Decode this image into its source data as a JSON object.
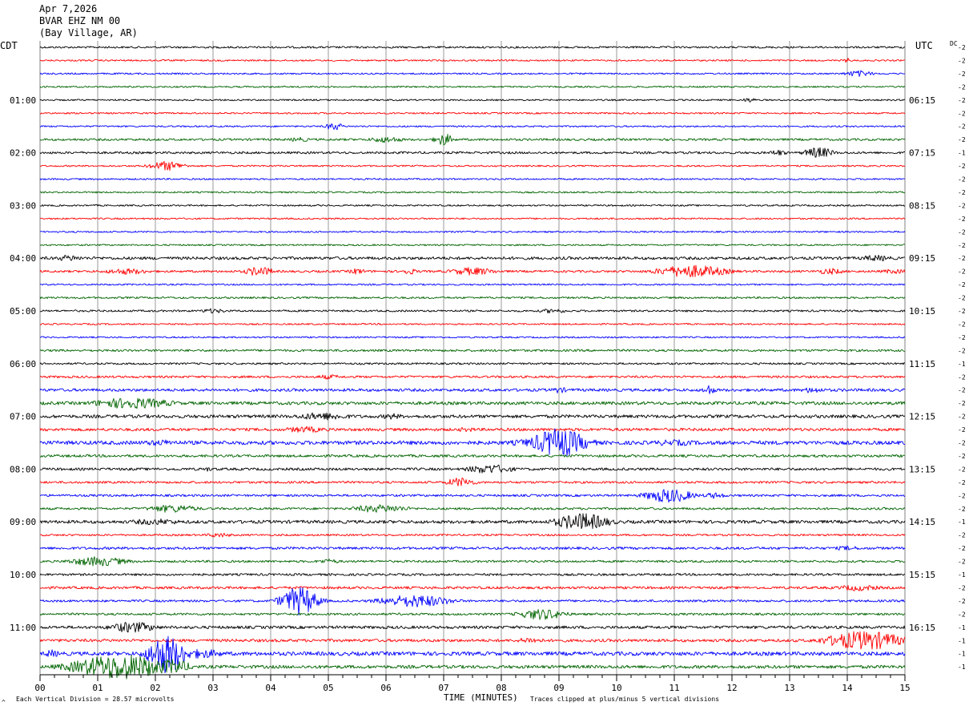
{
  "header": {
    "date": "Apr 7,2026",
    "station": "BVAR EHZ NM 00",
    "location": "(Bay Village, AR)"
  },
  "labels": {
    "left_tz": "CDT",
    "right_tz": "UTC",
    "dc_label": "DC",
    "xlabel": "TIME (MINUTES)",
    "scale_note": "Each Vertical Division =   28.57 microvolts",
    "clip_note": "Traces clipped at plus/minus 5 vertical divisions",
    "footer_mark": "^"
  },
  "colors": {
    "row_cycle": [
      "#000000",
      "#ff0000",
      "#0000ff",
      "#006400"
    ],
    "grid": "#808080",
    "axis": "#000000"
  },
  "chart_data": {
    "type": "line",
    "subtype": "helicorder",
    "xlim": [
      0,
      15
    ],
    "x_tick_labels": [
      "00",
      "01",
      "02",
      "03",
      "04",
      "05",
      "06",
      "07",
      "08",
      "09",
      "10",
      "11",
      "12",
      "13",
      "14",
      "15"
    ],
    "rows_per_hour": 4,
    "row_count": 48,
    "left_hour_labels": [
      "01:00",
      "02:00",
      "03:00",
      "04:00",
      "05:00",
      "06:00",
      "07:00",
      "08:00",
      "09:00",
      "10:00",
      "11:00"
    ],
    "right_hour_labels": [
      "06:15",
      "07:15",
      "08:15",
      "09:15",
      "10:15",
      "11:15",
      "12:15",
      "13:15",
      "14:15",
      "15:15",
      "16:15"
    ],
    "hour_label_rows": [
      4,
      8,
      12,
      16,
      20,
      24,
      28,
      32,
      36,
      40,
      44
    ],
    "dc_offsets": [
      "-2",
      "-2",
      "-2",
      "-2",
      "-2",
      "-2",
      "-2",
      "-2",
      "-1",
      "-2",
      "-2",
      "-2",
      "-2",
      "-2",
      "-2",
      "-2",
      "-2",
      "-2",
      "-2",
      "-2",
      "-2",
      "-2",
      "-2",
      "-2",
      "-1",
      "-2",
      "-2",
      "-2",
      "-2",
      "-2",
      "-2",
      "-2",
      "-2",
      "-2",
      "-2",
      "-2",
      "-1",
      "-2",
      "-2",
      "-2",
      "-1",
      "-2",
      "-2",
      "-2",
      "-1",
      "-1",
      "-1",
      "-1"
    ],
    "baseline_noise": [
      1.2,
      1,
      1,
      1,
      1,
      1,
      1,
      1.4,
      1.4,
      1,
      1,
      1,
      1,
      1,
      1,
      1,
      1.8,
      1.4,
      1,
      1.2,
      1.2,
      1,
      1,
      1.4,
      1.2,
      1.4,
      1.8,
      2,
      2,
      1.8,
      2.4,
      1.6,
      1.6,
      1.4,
      1.4,
      1.4,
      2,
      1.2,
      1.6,
      1.4,
      1.4,
      1.6,
      1.4,
      1.4,
      1.8,
      1.8,
      2.4,
      2
    ],
    "events": [
      {
        "row": 1,
        "minute": 14.0,
        "amp": 3,
        "dur": 0.15
      },
      {
        "row": 2,
        "minute": 14.2,
        "amp": 4,
        "dur": 0.5
      },
      {
        "row": 4,
        "minute": 12.3,
        "amp": 3,
        "dur": 0.25
      },
      {
        "row": 6,
        "minute": 5.1,
        "amp": 5,
        "dur": 0.3
      },
      {
        "row": 7,
        "minute": 4.5,
        "amp": 3,
        "dur": 0.4
      },
      {
        "row": 7,
        "minute": 6.0,
        "amp": 4,
        "dur": 0.6
      },
      {
        "row": 7,
        "minute": 7.0,
        "amp": 8,
        "dur": 0.3
      },
      {
        "row": 8,
        "minute": 12.8,
        "amp": 4,
        "dur": 0.3
      },
      {
        "row": 8,
        "minute": 13.5,
        "amp": 7,
        "dur": 0.5
      },
      {
        "row": 9,
        "minute": 2.2,
        "amp": 6,
        "dur": 0.6
      },
      {
        "row": 16,
        "minute": 0.5,
        "amp": 4,
        "dur": 0.5
      },
      {
        "row": 16,
        "minute": 14.5,
        "amp": 4,
        "dur": 0.6
      },
      {
        "row": 17,
        "minute": 1.5,
        "amp": 4,
        "dur": 0.8
      },
      {
        "row": 17,
        "minute": 3.8,
        "amp": 6,
        "dur": 0.5
      },
      {
        "row": 17,
        "minute": 5.5,
        "amp": 4,
        "dur": 0.3
      },
      {
        "row": 17,
        "minute": 6.4,
        "amp": 4,
        "dur": 0.3
      },
      {
        "row": 17,
        "minute": 7.5,
        "amp": 5,
        "dur": 0.8
      },
      {
        "row": 17,
        "minute": 11.3,
        "amp": 8,
        "dur": 1.2
      },
      {
        "row": 17,
        "minute": 13.7,
        "amp": 4,
        "dur": 0.5
      },
      {
        "row": 17,
        "minute": 14.8,
        "amp": 3,
        "dur": 0.5
      },
      {
        "row": 20,
        "minute": 3.0,
        "amp": 3,
        "dur": 0.5
      },
      {
        "row": 20,
        "minute": 8.9,
        "amp": 3,
        "dur": 0.5
      },
      {
        "row": 25,
        "minute": 5.0,
        "amp": 3,
        "dur": 0.5
      },
      {
        "row": 26,
        "minute": 9.0,
        "amp": 4,
        "dur": 0.3
      },
      {
        "row": 26,
        "minute": 11.6,
        "amp": 7,
        "dur": 0.2
      },
      {
        "row": 26,
        "minute": 13.4,
        "amp": 4,
        "dur": 0.4
      },
      {
        "row": 27,
        "minute": 1.6,
        "amp": 7,
        "dur": 1.4
      },
      {
        "row": 28,
        "minute": 4.9,
        "amp": 5,
        "dur": 1.0
      },
      {
        "row": 28,
        "minute": 6.1,
        "amp": 4,
        "dur": 0.4
      },
      {
        "row": 29,
        "minute": 4.6,
        "amp": 4,
        "dur": 0.8
      },
      {
        "row": 29,
        "minute": 7.4,
        "amp": 3,
        "dur": 0.4
      },
      {
        "row": 30,
        "minute": 2.1,
        "amp": 4,
        "dur": 0.8
      },
      {
        "row": 30,
        "minute": 8.5,
        "amp": 5,
        "dur": 0.8
      },
      {
        "row": 30,
        "minute": 9.0,
        "amp": 18,
        "dur": 0.9
      },
      {
        "row": 30,
        "minute": 11.0,
        "amp": 4,
        "dur": 1.0
      },
      {
        "row": 32,
        "minute": 7.8,
        "amp": 6,
        "dur": 0.8
      },
      {
        "row": 32,
        "minute": 2.9,
        "amp": 3,
        "dur": 0.2
      },
      {
        "row": 33,
        "minute": 7.3,
        "amp": 6,
        "dur": 0.5
      },
      {
        "row": 34,
        "minute": 10.9,
        "amp": 9,
        "dur": 0.8
      },
      {
        "row": 34,
        "minute": 11.7,
        "amp": 4,
        "dur": 0.4
      },
      {
        "row": 35,
        "minute": 2.3,
        "amp": 5,
        "dur": 0.9
      },
      {
        "row": 35,
        "minute": 5.9,
        "amp": 5,
        "dur": 1.0
      },
      {
        "row": 36,
        "minute": 2.0,
        "amp": 4,
        "dur": 1.0
      },
      {
        "row": 36,
        "minute": 9.4,
        "amp": 11,
        "dur": 0.9
      },
      {
        "row": 37,
        "minute": 3.1,
        "amp": 3,
        "dur": 0.5
      },
      {
        "row": 38,
        "minute": 14.0,
        "amp": 3,
        "dur": 0.5
      },
      {
        "row": 39,
        "minute": 1.0,
        "amp": 6,
        "dur": 1.0
      },
      {
        "row": 39,
        "minute": 5.0,
        "amp": 3,
        "dur": 0.5
      },
      {
        "row": 41,
        "minute": 14.2,
        "amp": 4,
        "dur": 0.8
      },
      {
        "row": 42,
        "minute": 4.5,
        "amp": 18,
        "dur": 0.6
      },
      {
        "row": 42,
        "minute": 6.5,
        "amp": 8,
        "dur": 1.2
      },
      {
        "row": 43,
        "minute": 8.7,
        "amp": 7,
        "dur": 0.8
      },
      {
        "row": 44,
        "minute": 1.6,
        "amp": 7,
        "dur": 0.8
      },
      {
        "row": 45,
        "minute": 8.5,
        "amp": 4,
        "dur": 0.5
      },
      {
        "row": 45,
        "minute": 14.3,
        "amp": 12,
        "dur": 1.3
      },
      {
        "row": 46,
        "minute": 2.2,
        "amp": 25,
        "dur": 0.6
      },
      {
        "row": 46,
        "minute": 2.8,
        "amp": 6,
        "dur": 0.8
      },
      {
        "row": 46,
        "minute": 0.2,
        "amp": 5,
        "dur": 0.3
      },
      {
        "row": 47,
        "minute": 1.4,
        "amp": 16,
        "dur": 1.6
      },
      {
        "row": 47,
        "minute": 2.3,
        "amp": 10,
        "dur": 0.6
      }
    ]
  }
}
